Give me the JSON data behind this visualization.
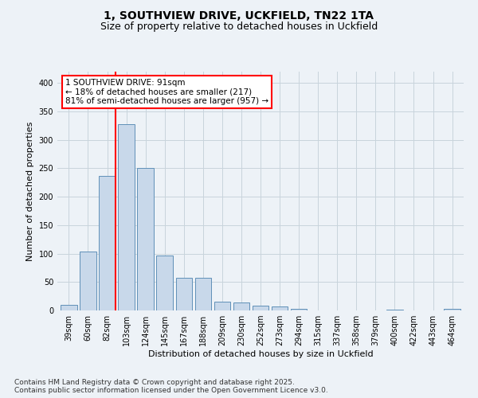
{
  "title": "1, SOUTHVIEW DRIVE, UCKFIELD, TN22 1TA",
  "subtitle": "Size of property relative to detached houses in Uckfield",
  "xlabel": "Distribution of detached houses by size in Uckfield",
  "ylabel": "Number of detached properties",
  "bar_color": "#c8d8ea",
  "bar_edge_color": "#6090b8",
  "categories": [
    "39sqm",
    "60sqm",
    "82sqm",
    "103sqm",
    "124sqm",
    "145sqm",
    "167sqm",
    "188sqm",
    "209sqm",
    "230sqm",
    "252sqm",
    "273sqm",
    "294sqm",
    "315sqm",
    "337sqm",
    "358sqm",
    "379sqm",
    "400sqm",
    "422sqm",
    "443sqm",
    "464sqm"
  ],
  "values": [
    10,
    103,
    237,
    328,
    250,
    96,
    58,
    58,
    15,
    14,
    8,
    7,
    3,
    0,
    0,
    0,
    0,
    2,
    0,
    0,
    3
  ],
  "red_line_index": 2,
  "annotation_line1": "1 SOUTHVIEW DRIVE: 91sqm",
  "annotation_line2": "← 18% of detached houses are smaller (217)",
  "annotation_line3": "81% of semi-detached houses are larger (957) →",
  "annotation_box_color": "white",
  "annotation_box_edge_color": "red",
  "grid_color": "#c8d4dc",
  "background_color": "#edf2f7",
  "ylim": [
    0,
    420
  ],
  "yticks": [
    0,
    50,
    100,
    150,
    200,
    250,
    300,
    350,
    400
  ],
  "footer_text": "Contains HM Land Registry data © Crown copyright and database right 2025.\nContains public sector information licensed under the Open Government Licence v3.0.",
  "title_fontsize": 10,
  "subtitle_fontsize": 9,
  "axis_label_fontsize": 8,
  "tick_fontsize": 7,
  "annotation_fontsize": 7.5,
  "footer_fontsize": 6.5
}
